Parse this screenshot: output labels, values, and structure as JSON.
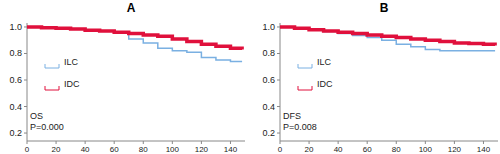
{
  "chart_data": [
    {
      "type": "line",
      "title": "A",
      "annotations": [
        "OS",
        "P=0.000"
      ],
      "line_style": "step",
      "legend": "left",
      "x": [
        0,
        10,
        20,
        30,
        40,
        50,
        60,
        70,
        80,
        90,
        100,
        110,
        120,
        130,
        140,
        148
      ],
      "series": [
        {
          "name": "ILC",
          "color": "#7ab0e2",
          "values": [
            1.0,
            0.995,
            0.99,
            0.985,
            0.98,
            0.97,
            0.96,
            0.91,
            0.88,
            0.84,
            0.82,
            0.81,
            0.77,
            0.75,
            0.74,
            0.74
          ]
        },
        {
          "name": "IDC",
          "color": "#e0103c",
          "values": [
            1.0,
            0.995,
            0.99,
            0.985,
            0.975,
            0.97,
            0.96,
            0.95,
            0.94,
            0.93,
            0.91,
            0.89,
            0.87,
            0.855,
            0.84,
            0.83
          ]
        }
      ],
      "xlim": [
        0,
        150
      ],
      "xticks": [
        0,
        20,
        40,
        60,
        80,
        100,
        120,
        140
      ],
      "ylim": [
        0.14,
        1.03
      ],
      "yticks": [
        0.2,
        0.4,
        0.6,
        0.8,
        {
          "value": 1,
          "label": "1.0"
        }
      ]
    },
    {
      "type": "line",
      "title": "B",
      "annotations": [
        "DFS",
        "P=0.008"
      ],
      "line_style": "step",
      "legend": "left",
      "x": [
        0,
        10,
        20,
        30,
        40,
        50,
        60,
        70,
        80,
        90,
        100,
        110,
        120,
        130,
        140,
        148
      ],
      "series": [
        {
          "name": "ILC",
          "color": "#7ab0e2",
          "values": [
            1.0,
            0.99,
            0.98,
            0.965,
            0.95,
            0.935,
            0.92,
            0.9,
            0.87,
            0.85,
            0.83,
            0.82,
            0.82,
            0.82,
            0.82,
            0.82
          ]
        },
        {
          "name": "IDC",
          "color": "#e0103c",
          "values": [
            1.0,
            0.99,
            0.98,
            0.97,
            0.96,
            0.95,
            0.94,
            0.93,
            0.92,
            0.91,
            0.9,
            0.89,
            0.88,
            0.875,
            0.87,
            0.86
          ]
        }
      ],
      "xlim": [
        0,
        150
      ],
      "xticks": [
        0,
        20,
        40,
        60,
        80,
        100,
        120,
        140
      ],
      "ylim": [
        0.14,
        1.03
      ],
      "yticks": [
        0.2,
        0.4,
        0.6,
        0.8,
        {
          "value": 1,
          "label": "1.0"
        }
      ]
    }
  ]
}
